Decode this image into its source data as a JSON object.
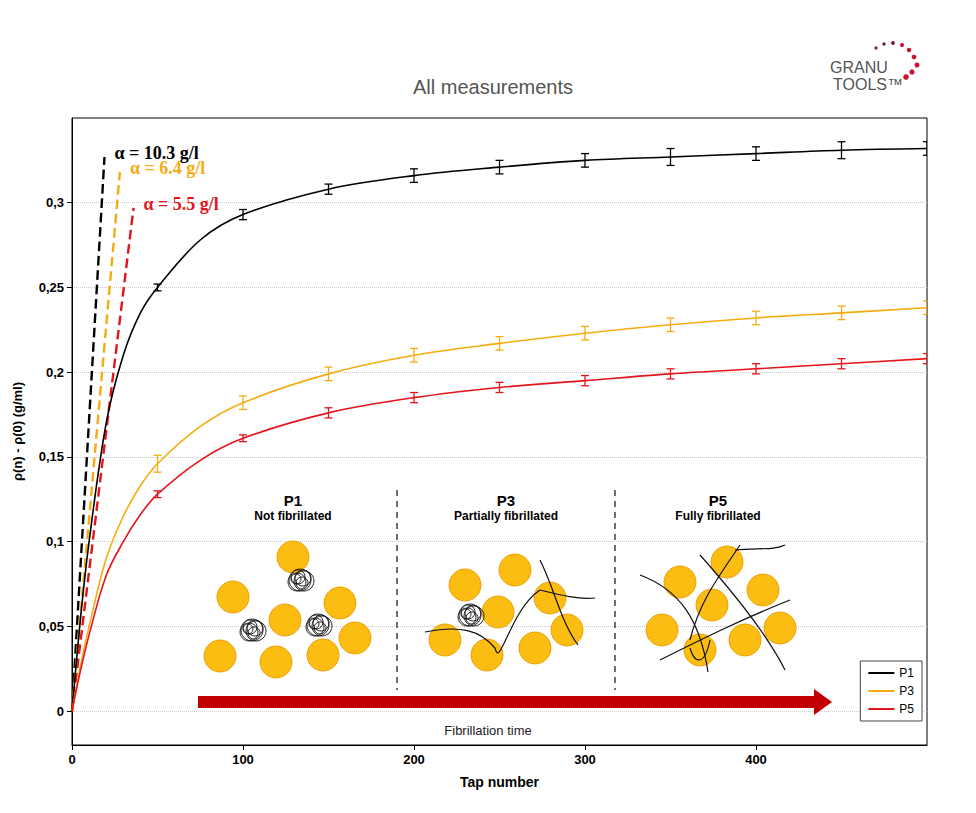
{
  "chart_data": {
    "type": "line",
    "title": "All measurements",
    "logo": [
      "GRANU",
      "TOOLS™"
    ],
    "x_label": "Tap number",
    "y_label": "ρ(n) - ρ(0) (g/ml)",
    "x": [
      0,
      5,
      10,
      20,
      30,
      40,
      50,
      75,
      100,
      150,
      200,
      250,
      300,
      350,
      400,
      450,
      500
    ],
    "series": [
      {
        "name": "P1",
        "color": "#000000",
        "values": [
          0,
          0.055,
          0.1,
          0.17,
          0.21,
          0.235,
          0.25,
          0.278,
          0.293,
          0.308,
          0.316,
          0.321,
          0.325,
          0.327,
          0.329,
          0.331,
          0.332
        ],
        "errors": [
          null,
          null,
          null,
          null,
          null,
          null,
          0.002,
          null,
          0.003,
          0.003,
          0.004,
          0.004,
          0.004,
          0.005,
          0.004,
          0.005,
          0.004
        ]
      },
      {
        "name": "P3",
        "color": "#f5ac10",
        "values": [
          0,
          0.027,
          0.05,
          0.09,
          0.115,
          0.133,
          0.146,
          0.168,
          0.182,
          0.199,
          0.21,
          0.217,
          0.223,
          0.228,
          0.232,
          0.235,
          0.238
        ],
        "errors": [
          null,
          null,
          null,
          null,
          null,
          null,
          0.005,
          null,
          0.004,
          0.004,
          0.004,
          0.004,
          0.004,
          0.004,
          0.004,
          0.004,
          0.004
        ]
      },
      {
        "name": "P5",
        "color": "#e3141b",
        "values": [
          0,
          0.024,
          0.045,
          0.08,
          0.1,
          0.116,
          0.128,
          0.148,
          0.161,
          0.176,
          0.185,
          0.191,
          0.195,
          0.199,
          0.202,
          0.205,
          0.208
        ],
        "errors": [
          null,
          null,
          null,
          null,
          null,
          null,
          0.002,
          null,
          0.002,
          0.003,
          0.003,
          0.003,
          0.003,
          0.003,
          0.003,
          0.003,
          0.003
        ]
      }
    ],
    "tangents": [
      {
        "label": "α = 10.3 g/l",
        "color": "#000000",
        "line_style": "dashed",
        "x": [
          0,
          19
        ],
        "values": [
          0,
          0.327
        ]
      },
      {
        "label": "α = 6.4 g/l",
        "color": "#f5ac10",
        "line_style": "dashed",
        "x": [
          0,
          28
        ],
        "values": [
          0,
          0.318
        ]
      },
      {
        "label": "α = 5.5 g/l",
        "color": "#e3141b",
        "line_style": "dashed",
        "x": [
          0,
          36
        ],
        "values": [
          0,
          0.297
        ]
      }
    ],
    "inset": {
      "panels": [
        {
          "title": "P1",
          "subtitle": "Not fibrillated"
        },
        {
          "title": "P3",
          "subtitle": "Partially fibrillated"
        },
        {
          "title": "P5",
          "subtitle": "Fully fibrillated"
        }
      ],
      "arrow_label": "Fibrillation time"
    },
    "xlim": [
      0,
      500
    ],
    "xticks": [
      0,
      100,
      200,
      300,
      400
    ],
    "ylim": [
      -0.02,
      0.35
    ],
    "yticks": [
      0,
      {
        "value": 0.05,
        "label": "0,05"
      },
      {
        "value": 0.1,
        "label": "0,1"
      },
      {
        "value": 0.15,
        "label": "0,15"
      },
      {
        "value": 0.2,
        "label": "0,2"
      },
      {
        "value": 0.25,
        "label": "0,25"
      },
      {
        "value": 0.3,
        "label": "0,3"
      }
    ],
    "grid": true,
    "legend": "bottom-right",
    "marker": "none",
    "line_style": "solid"
  }
}
